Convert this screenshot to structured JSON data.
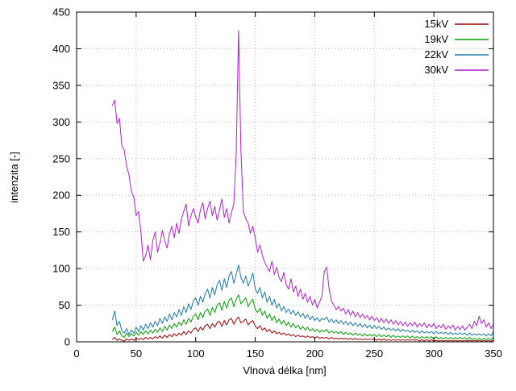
{
  "chart_data": {
    "type": "line",
    "title": "",
    "xlabel": "Vlnová délka [nm]",
    "ylabel": "intenzita [-]",
    "xlim": [
      0,
      350
    ],
    "ylim": [
      0,
      450
    ],
    "xtick_step": 50,
    "ytick_step": 50,
    "grid": true,
    "legend_position": "top-right",
    "background": "#ffffff",
    "x_start": 30,
    "x_step": 2,
    "series": [
      {
        "name": "15kV",
        "color": "#a00000",
        "values": [
          3,
          6,
          2,
          4,
          2,
          1,
          4,
          2,
          4,
          2,
          5,
          3,
          5,
          3,
          6,
          4,
          6,
          4,
          7,
          5,
          8,
          5,
          9,
          6,
          10,
          7,
          11,
          8,
          12,
          9,
          14,
          10,
          15,
          12,
          17,
          19,
          14,
          20,
          16,
          22,
          24,
          18,
          25,
          20,
          26,
          28,
          21,
          29,
          23,
          30,
          32,
          24,
          30,
          34,
          26,
          28,
          31,
          23,
          27,
          29,
          21,
          18,
          22,
          16,
          19,
          14,
          17,
          12,
          15,
          11,
          13,
          10,
          12,
          9,
          11,
          8,
          10,
          7,
          9,
          7,
          8,
          6,
          8,
          6,
          7,
          5,
          7,
          5,
          6,
          5,
          6,
          4,
          6,
          4,
          5,
          4,
          5,
          4,
          5,
          3,
          5,
          3,
          5,
          3,
          4,
          3,
          4,
          3,
          4,
          3,
          4,
          2,
          4,
          2,
          4,
          2,
          3,
          2,
          3,
          2,
          3,
          2,
          3,
          2,
          3,
          2,
          3,
          2,
          3,
          1,
          3,
          1,
          3,
          1,
          3,
          1,
          2,
          1,
          2,
          1,
          2,
          1,
          2,
          1,
          2,
          1,
          2,
          1,
          2,
          1,
          2,
          1,
          2,
          1,
          2,
          1,
          2,
          1,
          2,
          1,
          2
        ]
      },
      {
        "name": "19kV",
        "color": "#00a000",
        "values": [
          14,
          20,
          10,
          15,
          8,
          6,
          12,
          7,
          11,
          8,
          13,
          9,
          14,
          10,
          15,
          11,
          16,
          12,
          17,
          13,
          19,
          14,
          21,
          16,
          23,
          18,
          25,
          20,
          27,
          22,
          30,
          24,
          32,
          27,
          35,
          38,
          30,
          40,
          33,
          42,
          45,
          36,
          47,
          40,
          50,
          53,
          43,
          55,
          46,
          57,
          60,
          48,
          58,
          64,
          52,
          56,
          60,
          48,
          54,
          58,
          44,
          40,
          46,
          36,
          42,
          32,
          38,
          29,
          35,
          26,
          31,
          24,
          29,
          22,
          27,
          20,
          25,
          19,
          23,
          17,
          21,
          16,
          20,
          15,
          18,
          14,
          17,
          13,
          16,
          14,
          17,
          12,
          15,
          12,
          14,
          11,
          14,
          10,
          13,
          10,
          12,
          9,
          12,
          9,
          11,
          8,
          11,
          8,
          10,
          8,
          10,
          7,
          10,
          7,
          9,
          7,
          9,
          6,
          9,
          6,
          8,
          6,
          8,
          6,
          8,
          5,
          8,
          5,
          7,
          5,
          7,
          5,
          7,
          5,
          7,
          4,
          7,
          4,
          6,
          4,
          6,
          4,
          6,
          4,
          6,
          4,
          6,
          4,
          6,
          3,
          6,
          3,
          5,
          3,
          5,
          3,
          5,
          3,
          5,
          3,
          6
        ]
      },
      {
        "name": "22kV",
        "color": "#1878a8",
        "values": [
          30,
          42,
          22,
          28,
          15,
          12,
          18,
          10,
          16,
          12,
          20,
          14,
          22,
          16,
          24,
          18,
          26,
          20,
          28,
          22,
          32,
          25,
          34,
          28,
          38,
          30,
          40,
          34,
          44,
          36,
          48,
          40,
          52,
          44,
          56,
          60,
          50,
          62,
          54,
          66,
          72,
          60,
          74,
          64,
          78,
          84,
          70,
          86,
          74,
          90,
          96,
          80,
          92,
          105,
          88,
          80,
          90,
          76,
          84,
          94,
          72,
          66,
          74,
          60,
          68,
          54,
          62,
          50,
          58,
          46,
          52,
          42,
          48,
          40,
          45,
          38,
          43,
          36,
          41,
          34,
          39,
          32,
          37,
          30,
          35,
          29,
          33,
          28,
          32,
          30,
          34,
          27,
          31,
          26,
          30,
          25,
          29,
          24,
          28,
          23,
          27,
          22,
          26,
          21,
          25,
          20,
          24,
          19,
          23,
          18,
          22,
          18,
          21,
          17,
          20,
          16,
          19,
          16,
          18,
          15,
          18,
          14,
          17,
          14,
          16,
          13,
          16,
          13,
          15,
          12,
          15,
          12,
          14,
          12,
          14,
          11,
          14,
          11,
          13,
          11,
          13,
          10,
          13,
          10,
          12,
          10,
          12,
          10,
          12,
          9,
          12,
          9,
          11,
          9,
          11,
          9,
          11,
          8,
          11,
          8,
          14
        ]
      },
      {
        "name": "30kV",
        "color": "#b020d0",
        "values": [
          322,
          330,
          298,
          305,
          268,
          262,
          240,
          228,
          205,
          198,
          172,
          178,
          150,
          110,
          118,
          132,
          112,
          138,
          150,
          122,
          135,
          152,
          138,
          128,
          148,
          158,
          142,
          162,
          148,
          168,
          178,
          188,
          158,
          172,
          182,
          170,
          162,
          180,
          190,
          168,
          182,
          192,
          172,
          185,
          166,
          180,
          195,
          170,
          182,
          162,
          176,
          188,
          255,
          425,
          262,
          178,
          168,
          162,
          148,
          158,
          142,
          122,
          132,
          118,
          108,
          102,
          96,
          110,
          92,
          102,
          88,
          82,
          95,
          78,
          72,
          86,
          68,
          76,
          62,
          72,
          58,
          66,
          54,
          62,
          50,
          58,
          46,
          54,
          62,
          96,
          102,
          72,
          56,
          50,
          44,
          48,
          42,
          46,
          38,
          44,
          36,
          42,
          34,
          40,
          33,
          38,
          32,
          36,
          30,
          35,
          29,
          33,
          27,
          32,
          26,
          31,
          25,
          30,
          24,
          29,
          23,
          28,
          22,
          27,
          21,
          26,
          22,
          27,
          20,
          25,
          21,
          26,
          19,
          24,
          20,
          25,
          18,
          23,
          19,
          24,
          17,
          22,
          18,
          23,
          16,
          21,
          17,
          22,
          16,
          20,
          24,
          18,
          28,
          22,
          35,
          25,
          30,
          20,
          26,
          18,
          24
        ]
      }
    ]
  }
}
